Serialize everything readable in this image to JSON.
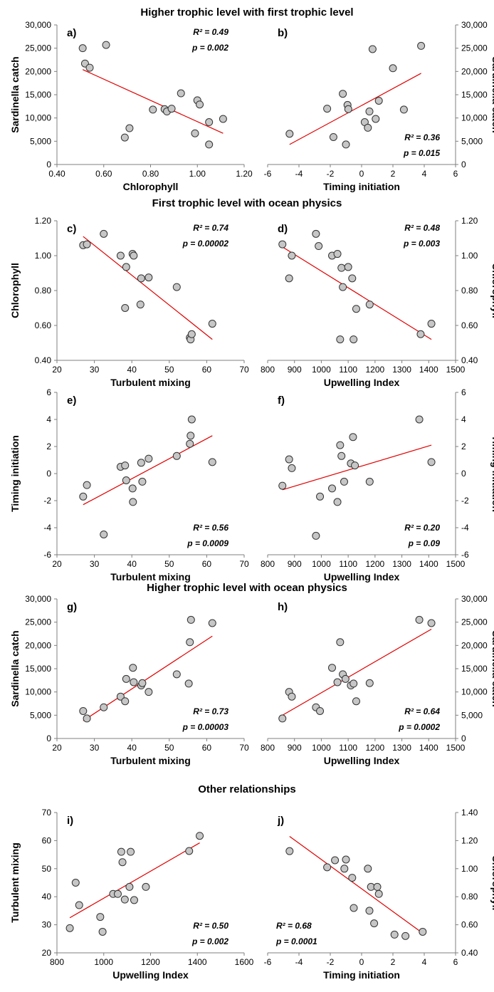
{
  "sections": [
    {
      "title": "Higher trophic level with first trophic level"
    },
    {
      "title": "First trophic level with ocean physics"
    },
    {
      "title": "Higher trophic level with ocean physics"
    },
    {
      "title": "Other relationships"
    }
  ],
  "chart_data": [
    {
      "panel": "a)",
      "type": "scatter",
      "section": 0,
      "xlabel": "Chlorophyll",
      "ylabel": "Sardinella catch",
      "yaxis_side": "left",
      "xlim": [
        0.4,
        1.2
      ],
      "ylim": [
        0,
        30000
      ],
      "xticks": [
        "0.40",
        "0.60",
        "0.80",
        "1.00",
        "1.20"
      ],
      "yticks": [
        "0",
        "5,000",
        "10,000",
        "15,000",
        "20,000",
        "25,000",
        "30,000"
      ],
      "r2": "R² = 0.49",
      "p": "p = 0.002",
      "stats_pos": "top-right",
      "x": [
        0.51,
        0.52,
        0.54,
        0.61,
        0.69,
        0.71,
        0.81,
        0.86,
        0.87,
        0.89,
        0.93,
        0.99,
        1.0,
        1.01,
        1.05,
        1.05,
        1.11
      ],
      "y": [
        25000,
        21700,
        20800,
        25700,
        5800,
        7800,
        11800,
        11900,
        11400,
        12000,
        15300,
        6700,
        13800,
        12900,
        9100,
        4300,
        9800
      ],
      "trend": {
        "x": [
          0.51,
          1.11
        ],
        "y": [
          20400,
          6700
        ]
      }
    },
    {
      "panel": "b)",
      "type": "scatter",
      "section": 0,
      "xlabel": "Timing initiation",
      "ylabel": "Sardinella catch",
      "yaxis_side": "right",
      "xlim": [
        -6,
        6
      ],
      "ylim": [
        0,
        30000
      ],
      "xticks": [
        "-6",
        "-4",
        "-2",
        "0",
        "2",
        "4",
        "6"
      ],
      "yticks": [
        "0",
        "5,000",
        "10,000",
        "15,000",
        "20,000",
        "25,000",
        "30,000"
      ],
      "r2": "R² = 0.36",
      "p": "p = 0.015",
      "stats_pos": "bottom-right",
      "x": [
        -4.6,
        -2.2,
        -1.8,
        -1.2,
        -1.0,
        -0.9,
        -0.85,
        0.2,
        0.4,
        0.5,
        0.7,
        0.9,
        1.1,
        2.0,
        2.7,
        3.8
      ],
      "y": [
        6600,
        12000,
        5900,
        15200,
        4300,
        12800,
        11900,
        9100,
        7900,
        11400,
        24800,
        9800,
        13700,
        20700,
        11800,
        25500
      ],
      "trend": {
        "x": [
          -4.6,
          3.8
        ],
        "y": [
          4300,
          19600
        ]
      }
    },
    {
      "panel": "c)",
      "type": "scatter",
      "section": 1,
      "xlabel": "Turbulent mixing",
      "ylabel": "Chlorophyll",
      "yaxis_side": "left",
      "xlim": [
        20,
        70
      ],
      "ylim": [
        0.4,
        1.2
      ],
      "xticks": [
        "20",
        "30",
        "40",
        "50",
        "60",
        "70"
      ],
      "yticks": [
        "0.40",
        "0.60",
        "0.80",
        "1.00",
        "1.20"
      ],
      "r2": "R² = 0.74",
      "p": "p = 0.00002",
      "stats_pos": "top-right",
      "x": [
        27,
        28,
        32.5,
        37,
        38.5,
        38.2,
        40.2,
        40.5,
        42.5,
        42.3,
        44.5,
        52,
        55.5,
        55.7,
        56,
        61.5
      ],
      "y": [
        1.06,
        1.065,
        1.125,
        1.0,
        0.935,
        0.7,
        1.01,
        1.0,
        0.87,
        0.72,
        0.875,
        0.82,
        0.53,
        0.52,
        0.55,
        0.61
      ],
      "trend": {
        "x": [
          27,
          61.5
        ],
        "y": [
          1.11,
          0.52
        ]
      }
    },
    {
      "panel": "d)",
      "type": "scatter",
      "section": 1,
      "xlabel": "Upwelling Index",
      "ylabel": "Chlorophyll",
      "yaxis_side": "right",
      "xlim": [
        800,
        1500
      ],
      "ylim": [
        0.4,
        1.2
      ],
      "xticks": [
        "800",
        "900",
        "1000",
        "1100",
        "1200",
        "1300",
        "1400",
        "1500"
      ],
      "yticks": [
        "0.40",
        "0.60",
        "0.80",
        "1.00",
        "1.20"
      ],
      "r2": "R² = 0.48",
      "p": "p = 0.003",
      "stats_pos": "top-right",
      "x": [
        855,
        880,
        890,
        980,
        990,
        1040,
        1060,
        1070,
        1075,
        1080,
        1100,
        1115,
        1120,
        1130,
        1180,
        1370,
        1410
      ],
      "y": [
        1.065,
        0.87,
        1.0,
        1.125,
        1.055,
        1.0,
        1.01,
        0.52,
        0.93,
        0.82,
        0.935,
        0.87,
        0.52,
        0.695,
        0.72,
        0.55,
        0.61
      ],
      "trend": {
        "x": [
          855,
          1410
        ],
        "y": [
          1.05,
          0.52
        ]
      }
    },
    {
      "panel": "e)",
      "type": "scatter",
      "section": 1,
      "xlabel": "Turbulent mixing",
      "ylabel": "Timing initiation",
      "yaxis_side": "left",
      "xlim": [
        20,
        70
      ],
      "ylim": [
        -6,
        6
      ],
      "xticks": [
        "20",
        "30",
        "40",
        "50",
        "60",
        "70"
      ],
      "yticks": [
        "-6",
        "-4",
        "-2",
        "0",
        "2",
        "4",
        "6"
      ],
      "r2": "R² = 0.56",
      "p": "p = 0.0009",
      "stats_pos": "bottom-right",
      "x": [
        27,
        28,
        32.5,
        37,
        38.2,
        38.5,
        40.2,
        40.3,
        42.5,
        42.8,
        44.5,
        52,
        55.5,
        55.7,
        56,
        61.5
      ],
      "y": [
        -1.7,
        -0.85,
        -4.5,
        0.5,
        0.6,
        -0.5,
        -1.1,
        -2.1,
        0.8,
        -0.6,
        1.1,
        1.3,
        2.2,
        2.8,
        4.0,
        0.85
      ],
      "trend": {
        "x": [
          27,
          61.5
        ],
        "y": [
          -2.3,
          2.8
        ]
      }
    },
    {
      "panel": "f)",
      "type": "scatter",
      "section": 1,
      "xlabel": "Upwelling Index",
      "ylabel": "Timing initiation",
      "yaxis_side": "right",
      "xlim": [
        800,
        1500
      ],
      "ylim": [
        -6,
        6
      ],
      "xticks": [
        "800",
        "900",
        "1000",
        "1100",
        "1200",
        "1300",
        "1400",
        "1500"
      ],
      "yticks": [
        "-6",
        "-4",
        "-2",
        "0",
        "2",
        "4",
        "6"
      ],
      "r2": "R² = 0.20",
      "p": "p = 0.09",
      "stats_pos": "bottom-right",
      "x": [
        855,
        880,
        890,
        980,
        995,
        1040,
        1060,
        1070,
        1075,
        1085,
        1110,
        1118,
        1125,
        1180,
        1365,
        1410
      ],
      "y": [
        -0.9,
        1.05,
        0.4,
        -4.6,
        -1.7,
        -1.1,
        -2.1,
        2.1,
        1.3,
        -0.6,
        0.75,
        2.7,
        0.6,
        -0.6,
        4.0,
        0.85
      ],
      "trend": {
        "x": [
          855,
          1410
        ],
        "y": [
          -1.2,
          2.1
        ]
      }
    },
    {
      "panel": "g)",
      "type": "scatter",
      "section": 2,
      "xlabel": "Turbulent mixing",
      "ylabel": "Sardinella catch",
      "yaxis_side": "left",
      "xlim": [
        20,
        70
      ],
      "ylim": [
        0,
        30000
      ],
      "xticks": [
        "20",
        "30",
        "40",
        "50",
        "60",
        "70"
      ],
      "yticks": [
        "0",
        "5,000",
        "10,000",
        "15,000",
        "20,000",
        "25,000",
        "30,000"
      ],
      "r2": "R² = 0.73",
      "p": "p = 0.00003",
      "stats_pos": "bottom-right",
      "x": [
        27,
        28,
        32.5,
        37,
        38.2,
        38.5,
        40.3,
        40.5,
        42.5,
        42.8,
        44.5,
        52,
        55.2,
        55.5,
        55.8,
        61.5
      ],
      "y": [
        5900,
        4300,
        6700,
        9000,
        8000,
        12800,
        15200,
        12100,
        11400,
        11900,
        10000,
        13800,
        11800,
        20700,
        25500,
        24800
      ],
      "trend": {
        "x": [
          27,
          61.5
        ],
        "y": [
          3800,
          22000
        ]
      }
    },
    {
      "panel": "h)",
      "type": "scatter",
      "section": 2,
      "xlabel": "Upwelling Index",
      "ylabel": "Sardinella catch",
      "yaxis_side": "right",
      "xlim": [
        800,
        1500
      ],
      "ylim": [
        0,
        30000
      ],
      "xticks": [
        "800",
        "900",
        "1000",
        "1100",
        "1200",
        "1300",
        "1400",
        "1500"
      ],
      "yticks": [
        "0",
        "5,000",
        "10,000",
        "15,000",
        "20,000",
        "25,000",
        "30,000"
      ],
      "r2": "R² = 0.64",
      "p": "p = 0.0002",
      "stats_pos": "bottom-right",
      "x": [
        855,
        880,
        890,
        980,
        995,
        1040,
        1060,
        1070,
        1080,
        1090,
        1110,
        1120,
        1130,
        1180,
        1365,
        1410
      ],
      "y": [
        4300,
        10000,
        9000,
        6700,
        5900,
        15200,
        12100,
        20700,
        13800,
        12800,
        11400,
        11800,
        8000,
        11900,
        25500,
        24800
      ],
      "trend": {
        "x": [
          855,
          1410
        ],
        "y": [
          5000,
          23500
        ]
      }
    },
    {
      "panel": "i)",
      "type": "scatter",
      "section": 3,
      "xlabel": "Upwelling Index",
      "ylabel": "Turbulent mixing",
      "yaxis_side": "left",
      "xlim": [
        800,
        1600
      ],
      "ylim": [
        20,
        70
      ],
      "xticks": [
        "800",
        "1000",
        "1200",
        "1400",
        "1600"
      ],
      "yticks": [
        "20",
        "30",
        "40",
        "50",
        "60",
        "70"
      ],
      "r2": "R² = 0.50",
      "p": "p = 0.002",
      "stats_pos": "bottom-right",
      "x": [
        855,
        880,
        895,
        985,
        995,
        1040,
        1060,
        1075,
        1080,
        1090,
        1110,
        1115,
        1130,
        1180,
        1365,
        1410
      ],
      "y": [
        28.8,
        45,
        37,
        32.8,
        27.5,
        41,
        41,
        56,
        52.3,
        39,
        43.5,
        56,
        38.8,
        43.5,
        56.3,
        61.7
      ],
      "trend": {
        "x": [
          855,
          1410
        ],
        "y": [
          32.5,
          59.2
        ]
      }
    },
    {
      "panel": "j)",
      "type": "scatter",
      "section": 3,
      "xlabel": "Timing initiation",
      "ylabel": "Chlorophyll",
      "yaxis_side": "right",
      "xlim": [
        -6,
        6
      ],
      "ylim": [
        0.4,
        1.4
      ],
      "xticks": [
        "-6",
        "-4",
        "-2",
        "0",
        "2",
        "4",
        "6"
      ],
      "yticks": [
        "0.40",
        "0.60",
        "0.80",
        "1.00",
        "1.20",
        "1.40"
      ],
      "r2": "R² = 0.68",
      "p": "p = 0.0001",
      "stats_pos": "bottom-left",
      "x": [
        -4.6,
        -2.2,
        -1.7,
        -1.1,
        -1.0,
        -0.6,
        -0.5,
        0.4,
        0.5,
        0.6,
        0.8,
        1.0,
        1.1,
        2.1,
        2.8,
        3.9
      ],
      "y": [
        1.125,
        1.01,
        1.06,
        1.0,
        1.065,
        0.935,
        0.72,
        1.0,
        0.7,
        0.87,
        0.61,
        0.87,
        0.82,
        0.53,
        0.52,
        0.55
      ],
      "trend": {
        "x": [
          -4.6,
          3.9
        ],
        "y": [
          1.23,
          0.54
        ]
      }
    }
  ]
}
